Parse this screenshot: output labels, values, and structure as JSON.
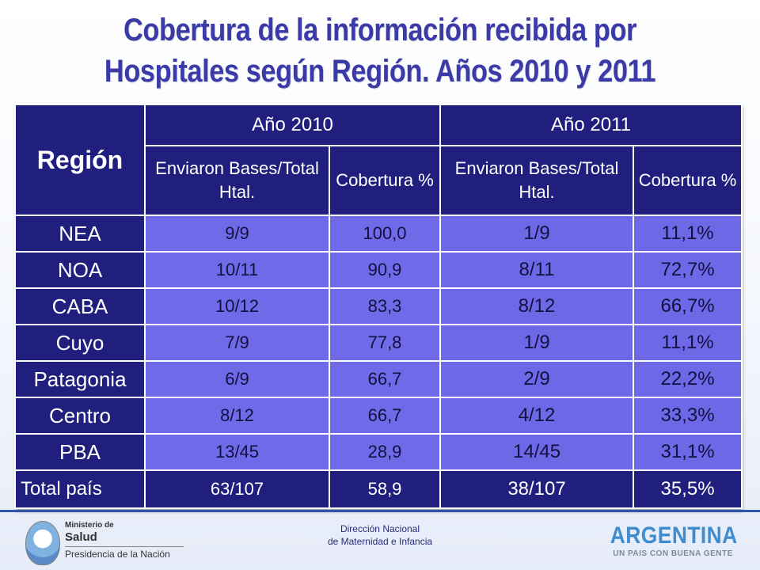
{
  "title": {
    "line1": "Cobertura de la información recibida por",
    "line2": "Hospitales según Región. Años 2010 y 2011"
  },
  "table": {
    "region_header": "Región",
    "year_2010": "Año 2010",
    "year_2011": "Año 2011",
    "sent_header": "Enviaron Bases/Total Htal.",
    "coverage_header": "Cobertura %",
    "rows": [
      {
        "region": "NEA",
        "sent_2010": "9/9",
        "cov_2010": "100,0",
        "sent_2011": "1/9",
        "cov_2011": "11,1%"
      },
      {
        "region": "NOA",
        "sent_2010": "10/11",
        "cov_2010": "90,9",
        "sent_2011": "8/11",
        "cov_2011": "72,7%"
      },
      {
        "region": "CABA",
        "sent_2010": "10/12",
        "cov_2010": "83,3",
        "sent_2011": "8/12",
        "cov_2011": "66,7%"
      },
      {
        "region": "Cuyo",
        "sent_2010": "7/9",
        "cov_2010": "77,8",
        "sent_2011": "1/9",
        "cov_2011": "11,1%"
      },
      {
        "region": "Patagonia",
        "sent_2010": "6/9",
        "cov_2010": "66,7",
        "sent_2011": "2/9",
        "cov_2011": "22,2%"
      },
      {
        "region": "Centro",
        "sent_2010": "8/12",
        "cov_2010": "66,7",
        "sent_2011": "4/12",
        "cov_2011": "33,3%"
      },
      {
        "region": "PBA",
        "sent_2010": "13/45",
        "cov_2010": "28,9",
        "sent_2011": "14/45",
        "cov_2011": "31,1%"
      }
    ],
    "total": {
      "region": "Total país",
      "sent_2010": "63/107",
      "cov_2010": "58,9",
      "sent_2011": "38/107",
      "cov_2011": "35,5%"
    }
  },
  "footer": {
    "ministry_line1": "Ministerio de",
    "ministry_line2": "Salud",
    "ministry_line3": "Presidencia de la Nación",
    "center_line1": "Dirección Nacional",
    "center_line2": "de Maternidad e Infancia",
    "brand": "ARGENTINA",
    "tagline": "UN PAIS CON BUENA GENTE"
  },
  "colors": {
    "dark_cell": "#201f7e",
    "light_cell": "#6e6ae8",
    "title": "#3a3aa8",
    "brand": "#3f8ccf"
  }
}
